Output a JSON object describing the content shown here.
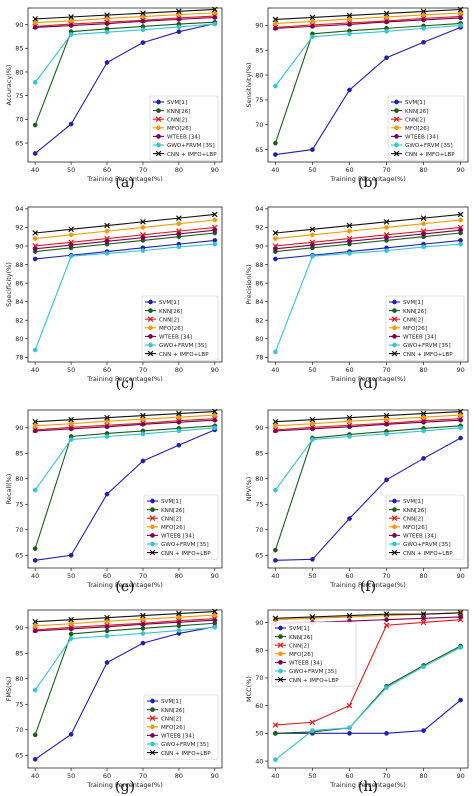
{
  "series_styles": [
    {
      "name": "SVM[1]",
      "color": "#1f1fb4",
      "marker": "circle"
    },
    {
      "name": "KNN[26]",
      "color": "#1a5e1a",
      "marker": "circle"
    },
    {
      "name": "CNN[2]",
      "color": "#e31a1a",
      "marker": "x"
    },
    {
      "name": "MFO[26]",
      "color": "#f59a00",
      "marker": "circle"
    },
    {
      "name": "WTEEB [34]",
      "color": "#7a005a",
      "marker": "circle"
    },
    {
      "name": "GWO+FRVM [35]",
      "color": "#36c3d6",
      "marker": "circle"
    },
    {
      "name": "CNN + IMFO+LBP",
      "color": "#111111",
      "marker": "x"
    }
  ],
  "chart_data": [
    {
      "type": "line",
      "caption": "(a)",
      "xlabel": "Training Percentage(%)",
      "ylabel": "Accuracy(%)",
      "x": [
        40,
        50,
        60,
        70,
        80,
        90
      ],
      "xlim": [
        38,
        92
      ],
      "ylim": [
        61,
        93.5
      ],
      "yticks": [
        65,
        70,
        75,
        80,
        85,
        90
      ],
      "series": [
        {
          "name": "SVM[1]",
          "values": [
            62.8,
            69.0,
            82.0,
            86.2,
            88.5,
            90.2
          ]
        },
        {
          "name": "KNN[26]",
          "values": [
            68.8,
            88.5,
            89.1,
            89.6,
            90.1,
            90.5
          ]
        },
        {
          "name": "CNN[2]",
          "values": [
            89.6,
            90.1,
            90.5,
            90.9,
            91.4,
            91.8
          ]
        },
        {
          "name": "MFO[26]",
          "values": [
            90.4,
            90.8,
            91.3,
            91.7,
            92.1,
            92.5
          ]
        },
        {
          "name": "WTEEB [34]",
          "values": [
            89.4,
            89.8,
            90.2,
            90.7,
            91.1,
            91.5
          ]
        },
        {
          "name": "GWO+FRVM [35]",
          "values": [
            77.8,
            87.9,
            88.4,
            88.9,
            89.5,
            90.1
          ]
        },
        {
          "name": "CNN + IMFO+LBP",
          "values": [
            91.2,
            91.6,
            92.0,
            92.4,
            92.8,
            93.2
          ]
        }
      ]
    },
    {
      "type": "line",
      "caption": "(b)",
      "xlabel": "Training Percentage(%)",
      "ylabel": "Sensitivity(%)",
      "x": [
        40,
        50,
        60,
        70,
        80,
        90
      ],
      "xlim": [
        38,
        92
      ],
      "ylim": [
        62.5,
        93.5
      ],
      "yticks": [
        65,
        70,
        75,
        80,
        85,
        90
      ],
      "series": [
        {
          "name": "SVM[1]",
          "values": [
            64.0,
            65.0,
            77.0,
            83.5,
            86.6,
            89.6
          ]
        },
        {
          "name": "KNN[26]",
          "values": [
            66.3,
            88.3,
            88.9,
            89.4,
            89.9,
            90.4
          ]
        },
        {
          "name": "CNN[2]",
          "values": [
            89.6,
            90.1,
            90.5,
            90.9,
            91.4,
            91.8
          ]
        },
        {
          "name": "MFO[26]",
          "values": [
            90.4,
            90.8,
            91.3,
            91.7,
            92.1,
            92.5
          ]
        },
        {
          "name": "WTEEB [34]",
          "values": [
            89.4,
            89.8,
            90.2,
            90.7,
            91.1,
            91.5
          ]
        },
        {
          "name": "GWO+FRVM [35]",
          "values": [
            77.8,
            87.7,
            88.3,
            88.8,
            89.4,
            90.0
          ]
        },
        {
          "name": "CNN + IMFO+LBP",
          "values": [
            91.2,
            91.6,
            92.0,
            92.4,
            92.8,
            93.2
          ]
        }
      ]
    },
    {
      "type": "line",
      "caption": "(c)",
      "xlabel": "Training Percentage(%)",
      "ylabel": "Specificity(%)",
      "x": [
        40,
        50,
        60,
        70,
        80,
        90
      ],
      "xlim": [
        38,
        92
      ],
      "ylim": [
        77.5,
        94.2
      ],
      "yticks": [
        78,
        80,
        82,
        84,
        86,
        88,
        90,
        92,
        94
      ],
      "series": [
        {
          "name": "SVM[1]",
          "values": [
            88.6,
            89.0,
            89.4,
            89.8,
            90.2,
            90.6
          ]
        },
        {
          "name": "KNN[26]",
          "values": [
            89.4,
            89.8,
            90.2,
            90.6,
            91.0,
            91.4
          ]
        },
        {
          "name": "CNN[2]",
          "values": [
            90.0,
            90.4,
            90.8,
            91.2,
            91.6,
            92.0
          ]
        },
        {
          "name": "MFO[26]",
          "values": [
            90.8,
            91.2,
            91.6,
            92.0,
            92.4,
            92.8
          ]
        },
        {
          "name": "WTEEB [34]",
          "values": [
            89.7,
            90.1,
            90.5,
            90.9,
            91.3,
            91.7
          ]
        },
        {
          "name": "GWO+FRVM [35]",
          "values": [
            78.8,
            88.9,
            89.2,
            89.5,
            89.9,
            90.2
          ]
        },
        {
          "name": "CNN + IMFO+LBP",
          "values": [
            91.4,
            91.8,
            92.2,
            92.6,
            93.0,
            93.4
          ]
        }
      ]
    },
    {
      "type": "line",
      "caption": "(d)",
      "xlabel": "Training Percentage(%)",
      "ylabel": "Precision(%)",
      "x": [
        40,
        50,
        60,
        70,
        80,
        90
      ],
      "xlim": [
        38,
        92
      ],
      "ylim": [
        77.5,
        94.2
      ],
      "yticks": [
        78,
        80,
        82,
        84,
        86,
        88,
        90,
        92,
        94
      ],
      "series": [
        {
          "name": "SVM[1]",
          "values": [
            88.6,
            89.0,
            89.4,
            89.8,
            90.2,
            90.6
          ]
        },
        {
          "name": "KNN[26]",
          "values": [
            89.4,
            89.8,
            90.2,
            90.6,
            91.0,
            91.4
          ]
        },
        {
          "name": "CNN[2]",
          "values": [
            90.0,
            90.4,
            90.8,
            91.2,
            91.6,
            92.0
          ]
        },
        {
          "name": "MFO[26]",
          "values": [
            90.8,
            91.2,
            91.6,
            92.0,
            92.4,
            92.8
          ]
        },
        {
          "name": "WTEEB [34]",
          "values": [
            89.7,
            90.1,
            90.5,
            90.9,
            91.3,
            91.7
          ]
        },
        {
          "name": "GWO+FRVM [35]",
          "values": [
            78.6,
            88.9,
            89.2,
            89.5,
            89.9,
            90.2
          ]
        },
        {
          "name": "CNN + IMFO+LBP",
          "values": [
            91.4,
            91.8,
            92.2,
            92.6,
            93.0,
            93.4
          ]
        }
      ]
    },
    {
      "type": "line",
      "caption": "(e)",
      "xlabel": "Training Percentage(%)",
      "ylabel": "Recall(%)",
      "x": [
        40,
        50,
        60,
        70,
        80,
        90
      ],
      "xlim": [
        38,
        92
      ],
      "ylim": [
        62.5,
        93.5
      ],
      "yticks": [
        65,
        70,
        75,
        80,
        85,
        90
      ],
      "series": [
        {
          "name": "SVM[1]",
          "values": [
            64.0,
            65.0,
            77.0,
            83.5,
            86.6,
            89.6
          ]
        },
        {
          "name": "KNN[26]",
          "values": [
            66.3,
            88.3,
            88.9,
            89.4,
            89.9,
            90.4
          ]
        },
        {
          "name": "CNN[2]",
          "values": [
            89.6,
            90.1,
            90.5,
            90.9,
            91.4,
            91.8
          ]
        },
        {
          "name": "MFO[26]",
          "values": [
            90.4,
            90.8,
            91.3,
            91.7,
            92.1,
            92.5
          ]
        },
        {
          "name": "WTEEB [34]",
          "values": [
            89.4,
            89.8,
            90.2,
            90.7,
            91.1,
            91.5
          ]
        },
        {
          "name": "GWO+FRVM [35]",
          "values": [
            77.8,
            87.7,
            88.3,
            88.8,
            89.4,
            90.0
          ]
        },
        {
          "name": "CNN + IMFO+LBP",
          "values": [
            91.2,
            91.6,
            92.0,
            92.4,
            92.8,
            93.2
          ]
        }
      ]
    },
    {
      "type": "line",
      "caption": "(f)",
      "xlabel": "Training Percentage(%)",
      "ylabel": "NPV(%)",
      "x": [
        40,
        50,
        60,
        70,
        80,
        90
      ],
      "xlim": [
        38,
        92
      ],
      "ylim": [
        62.5,
        93.5
      ],
      "yticks": [
        65,
        70,
        75,
        80,
        85,
        90
      ],
      "series": [
        {
          "name": "SVM[1]",
          "values": [
            64.0,
            64.2,
            72.2,
            79.8,
            84.0,
            88.0
          ]
        },
        {
          "name": "KNN[26]",
          "values": [
            66.0,
            88.0,
            88.7,
            89.3,
            89.9,
            90.4
          ]
        },
        {
          "name": "CNN[2]",
          "values": [
            89.6,
            90.1,
            90.5,
            90.9,
            91.4,
            91.8
          ]
        },
        {
          "name": "MFO[26]",
          "values": [
            90.4,
            90.8,
            91.3,
            91.7,
            92.1,
            92.5
          ]
        },
        {
          "name": "WTEEB [34]",
          "values": [
            89.4,
            89.8,
            90.2,
            90.7,
            91.1,
            91.5
          ]
        },
        {
          "name": "GWO+FRVM [35]",
          "values": [
            77.8,
            87.7,
            88.3,
            88.8,
            89.4,
            90.0
          ]
        },
        {
          "name": "CNN + IMFO+LBP",
          "values": [
            91.2,
            91.6,
            92.0,
            92.4,
            92.8,
            93.2
          ]
        }
      ]
    },
    {
      "type": "line",
      "caption": "(g)",
      "xlabel": "Training Percentage(%)",
      "ylabel": "FMS(%)",
      "x": [
        40,
        50,
        60,
        70,
        80,
        90
      ],
      "xlim": [
        38,
        92
      ],
      "ylim": [
        62.5,
        93.5
      ],
      "yticks": [
        65,
        70,
        75,
        80,
        85,
        90
      ],
      "series": [
        {
          "name": "SVM[1]",
          "values": [
            64.2,
            69.1,
            83.2,
            87.0,
            88.9,
            90.2
          ]
        },
        {
          "name": "KNN[26]",
          "values": [
            69.0,
            88.8,
            89.4,
            89.9,
            90.4,
            90.9
          ]
        },
        {
          "name": "CNN[2]",
          "values": [
            89.6,
            90.1,
            90.5,
            90.9,
            91.4,
            91.8
          ]
        },
        {
          "name": "MFO[26]",
          "values": [
            90.4,
            90.8,
            91.3,
            91.7,
            92.1,
            92.5
          ]
        },
        {
          "name": "WTEEB [34]",
          "values": [
            89.4,
            89.8,
            90.2,
            90.7,
            91.1,
            91.5
          ]
        },
        {
          "name": "GWO+FRVM [35]",
          "values": [
            77.8,
            87.9,
            88.4,
            88.9,
            89.5,
            90.1
          ]
        },
        {
          "name": "CNN + IMFO+LBP",
          "values": [
            91.2,
            91.6,
            92.0,
            92.4,
            92.8,
            93.2
          ]
        }
      ]
    },
    {
      "type": "line",
      "caption": "(h)",
      "xlabel": "Training Percentage(%)",
      "ylabel": "MCC(%)",
      "x": [
        40,
        50,
        60,
        70,
        80,
        90
      ],
      "xlim": [
        38,
        92
      ],
      "ylim": [
        37.5,
        94.5
      ],
      "yticks": [
        40,
        50,
        60,
        70,
        80,
        90
      ],
      "series": [
        {
          "name": "SVM[1]",
          "values": [
            50.0,
            50.0,
            50.0,
            50.0,
            51.0,
            62.0
          ]
        },
        {
          "name": "KNN[26]",
          "values": [
            50.0,
            50.5,
            52.0,
            67.0,
            74.5,
            81.5
          ]
        },
        {
          "name": "CNN[2]",
          "values": [
            53.0,
            54.0,
            60.0,
            89.0,
            90.0,
            91.0
          ]
        },
        {
          "name": "MFO[26]",
          "values": [
            91.0,
            91.5,
            92.0,
            92.5,
            93.0,
            93.5
          ]
        },
        {
          "name": "WTEEB [34]",
          "values": [
            89.5,
            90.0,
            90.5,
            91.0,
            91.5,
            92.0
          ]
        },
        {
          "name": "GWO+FRVM [35]",
          "values": [
            40.5,
            51.0,
            52.0,
            66.5,
            74.0,
            81.0
          ]
        },
        {
          "name": "CNN + IMFO+LBP",
          "values": [
            91.5,
            92.0,
            92.5,
            93.0,
            93.0,
            93.5
          ]
        }
      ]
    }
  ]
}
